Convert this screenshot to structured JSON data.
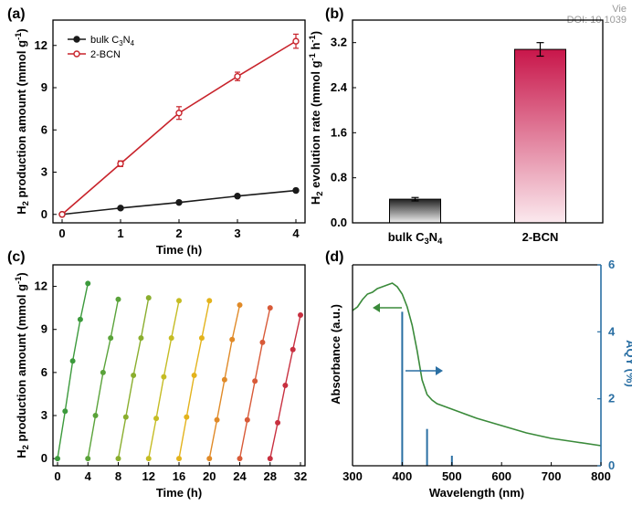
{
  "watermark": {
    "view": "Vie",
    "doi": "DOI: 10.1039"
  },
  "colors": {
    "axis": "#000000",
    "bulk": "#1a1a1a",
    "bcn": "#c8232b",
    "aqy": "#2a6fa3",
    "absorb": "#3a8a3a",
    "bar_bcn": "#c8164a",
    "bar_bulk": "#222222"
  },
  "chart_data": [
    {
      "panel": "(a)",
      "type": "line",
      "xlabel": "Time (h)",
      "ylabel": "H2 production amount (mmol g-1)",
      "xticks": [
        "0",
        "1",
        "2",
        "3",
        "4"
      ],
      "yticks": [
        "0",
        "3",
        "6",
        "9",
        "12"
      ],
      "xlim": [
        0,
        4
      ],
      "ylim": [
        -0.6,
        13.8
      ],
      "legend_position": "top-left",
      "series": [
        {
          "name": "bulk C3N4",
          "x": [
            0,
            1,
            2,
            3,
            4
          ],
          "y": [
            0,
            0.45,
            0.85,
            1.3,
            1.7
          ],
          "err": [
            0,
            0.05,
            0.06,
            0.08,
            0.1
          ]
        },
        {
          "name": "2-BCN",
          "x": [
            0,
            1,
            2,
            3,
            4
          ],
          "y": [
            0,
            3.6,
            7.2,
            9.8,
            12.3
          ],
          "err": [
            0,
            0.2,
            0.45,
            0.3,
            0.5
          ]
        }
      ]
    },
    {
      "panel": "(b)",
      "type": "bar",
      "ylabel": "H2 evolution rate (mmol g-1 h-1)",
      "categories": [
        "bulk C3N4",
        "2-BCN"
      ],
      "values": [
        0.42,
        3.08
      ],
      "err": [
        0.03,
        0.12
      ],
      "yticks": [
        "0.0",
        "0.8",
        "1.6",
        "2.4",
        "3.2"
      ],
      "ylim": [
        0,
        3.6
      ]
    },
    {
      "panel": "(c)",
      "type": "scatter",
      "xlabel": "Time (h)",
      "ylabel": "H2 production amount (mmol g-1)",
      "xticks": [
        "0",
        "4",
        "8",
        "12",
        "16",
        "20",
        "24",
        "28",
        "32"
      ],
      "yticks": [
        "0",
        "3",
        "6",
        "9",
        "12"
      ],
      "xlim": [
        -0.6,
        32.6
      ],
      "ylim": [
        -0.5,
        13.5
      ],
      "cycles": [
        {
          "start": 0,
          "y": [
            0,
            3.3,
            6.8,
            9.7,
            12.2
          ],
          "color": "#3c9a3c"
        },
        {
          "start": 4,
          "y": [
            0,
            3.0,
            6.0,
            8.4,
            11.1
          ],
          "color": "#5aa33a"
        },
        {
          "start": 8,
          "y": [
            0,
            2.9,
            5.8,
            8.4,
            11.2
          ],
          "color": "#8aae2e"
        },
        {
          "start": 12,
          "y": [
            0,
            2.8,
            5.7,
            8.4,
            11.0
          ],
          "color": "#c5bc24"
        },
        {
          "start": 16,
          "y": [
            0,
            2.9,
            5.8,
            8.4,
            11.0
          ],
          "color": "#e3b31c"
        },
        {
          "start": 20,
          "y": [
            0,
            2.7,
            5.5,
            8.3,
            10.7
          ],
          "color": "#e08a28"
        },
        {
          "start": 24,
          "y": [
            0,
            2.7,
            5.4,
            8.1,
            10.5
          ],
          "color": "#d85a38"
        },
        {
          "start": 28,
          "y": [
            0,
            2.5,
            5.1,
            7.6,
            10.0
          ],
          "color": "#c83040"
        }
      ]
    },
    {
      "panel": "(d)",
      "type": "line",
      "xlabel": "Wavelength (nm)",
      "ylabel": "Absorbance (a.u.)",
      "ylabel_right": "AQY (%)",
      "xticks": [
        "300",
        "400",
        "500",
        "600",
        "700",
        "800"
      ],
      "yticks_right": [
        "0",
        "2",
        "4",
        "6"
      ],
      "xlim": [
        300,
        800
      ],
      "ylim_right": [
        0,
        6
      ],
      "absorbance": {
        "x": [
          300,
          310,
          320,
          330,
          340,
          350,
          360,
          370,
          380,
          390,
          400,
          410,
          420,
          430,
          440,
          450,
          460,
          470,
          480,
          500,
          520,
          550,
          600,
          650,
          700,
          750,
          800
        ],
        "y": [
          0.8,
          0.82,
          0.86,
          0.89,
          0.9,
          0.92,
          0.93,
          0.94,
          0.95,
          0.93,
          0.89,
          0.82,
          0.72,
          0.58,
          0.42,
          0.34,
          0.31,
          0.29,
          0.28,
          0.26,
          0.24,
          0.21,
          0.17,
          0.13,
          0.1,
          0.08,
          0.06
        ]
      },
      "aqy_bars": {
        "x": [
          400,
          450,
          500
        ],
        "y": [
          4.6,
          1.1,
          0.3
        ]
      }
    }
  ]
}
